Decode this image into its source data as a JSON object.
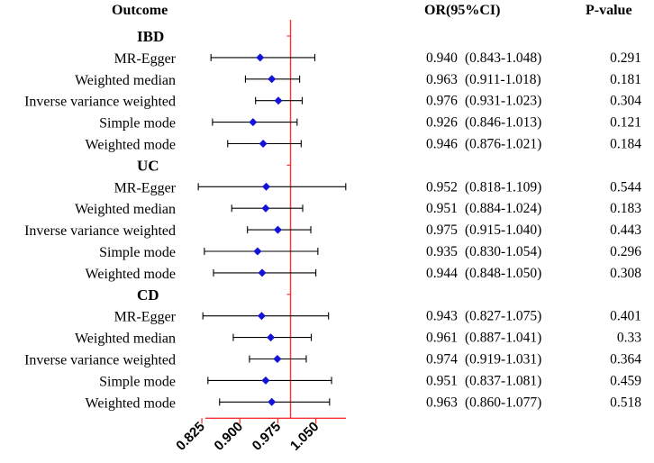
{
  "chart_data": {
    "type": "forest",
    "headers": {
      "outcome": "Outcome",
      "or": "OR(95%CI)",
      "p": "P-value"
    },
    "null_line": 1.0,
    "xlim": [
      0.8,
      1.12
    ],
    "xticks": [
      "0.825",
      "0.900",
      "0.975",
      "1.050"
    ],
    "colors": {
      "point": "#1414d8",
      "null_line": "#ff3030",
      "ci": "#000000"
    },
    "groups": [
      {
        "name": "IBD",
        "rows": [
          {
            "label": "MR-Egger",
            "or": 0.94,
            "lo": 0.843,
            "hi": 1.048,
            "or_text": "0.940",
            "ci_text": "(0.843-1.048)",
            "p": "0.291"
          },
          {
            "label": "Weighted median",
            "or": 0.963,
            "lo": 0.911,
            "hi": 1.018,
            "or_text": "0.963",
            "ci_text": "(0.911-1.018)",
            "p": "0.181"
          },
          {
            "label": "Inverse variance weighted",
            "or": 0.976,
            "lo": 0.931,
            "hi": 1.023,
            "or_text": "0.976",
            "ci_text": "(0.931-1.023)",
            "p": "0.304"
          },
          {
            "label": "Simple mode",
            "or": 0.926,
            "lo": 0.846,
            "hi": 1.013,
            "or_text": "0.926",
            "ci_text": "(0.846-1.013)",
            "p": "0.121"
          },
          {
            "label": "Weighted mode",
            "or": 0.946,
            "lo": 0.876,
            "hi": 1.021,
            "or_text": "0.946",
            "ci_text": "(0.876-1.021)",
            "p": "0.184"
          }
        ]
      },
      {
        "name": "UC",
        "rows": [
          {
            "label": "MR-Egger",
            "or": 0.952,
            "lo": 0.818,
            "hi": 1.109,
            "or_text": "0.952",
            "ci_text": "(0.818-1.109)",
            "p": "0.544"
          },
          {
            "label": "Weighted median",
            "or": 0.951,
            "lo": 0.884,
            "hi": 1.024,
            "or_text": "0.951",
            "ci_text": "(0.884-1.024)",
            "p": "0.183"
          },
          {
            "label": "Inverse variance weighted",
            "or": 0.975,
            "lo": 0.915,
            "hi": 1.04,
            "or_text": "0.975",
            "ci_text": "(0.915-1.040)",
            "p": "0.443"
          },
          {
            "label": "Simple mode",
            "or": 0.935,
            "lo": 0.83,
            "hi": 1.054,
            "or_text": "0.935",
            "ci_text": "(0.830-1.054)",
            "p": "0.296"
          },
          {
            "label": "Weighted mode",
            "or": 0.944,
            "lo": 0.848,
            "hi": 1.05,
            "or_text": "0.944",
            "ci_text": "(0.848-1.050)",
            "p": "0.308"
          }
        ]
      },
      {
        "name": "CD",
        "rows": [
          {
            "label": "MR-Egger",
            "or": 0.943,
            "lo": 0.827,
            "hi": 1.075,
            "or_text": "0.943",
            "ci_text": "(0.827-1.075)",
            "p": "0.401"
          },
          {
            "label": "Weighted median",
            "or": 0.961,
            "lo": 0.887,
            "hi": 1.041,
            "or_text": "0.961",
            "ci_text": "(0.887-1.041)",
            "p": "0.33"
          },
          {
            "label": "Inverse variance weighted",
            "or": 0.974,
            "lo": 0.919,
            "hi": 1.031,
            "or_text": "0.974",
            "ci_text": "(0.919-1.031)",
            "p": "0.364"
          },
          {
            "label": "Simple mode",
            "or": 0.951,
            "lo": 0.837,
            "hi": 1.081,
            "or_text": "0.951",
            "ci_text": "(0.837-1.081)",
            "p": "0.459"
          },
          {
            "label": "Weighted mode",
            "or": 0.963,
            "lo": 0.86,
            "hi": 1.077,
            "or_text": "0.963",
            "ci_text": "(0.860-1.077)",
            "p": "0.518"
          }
        ]
      }
    ]
  }
}
